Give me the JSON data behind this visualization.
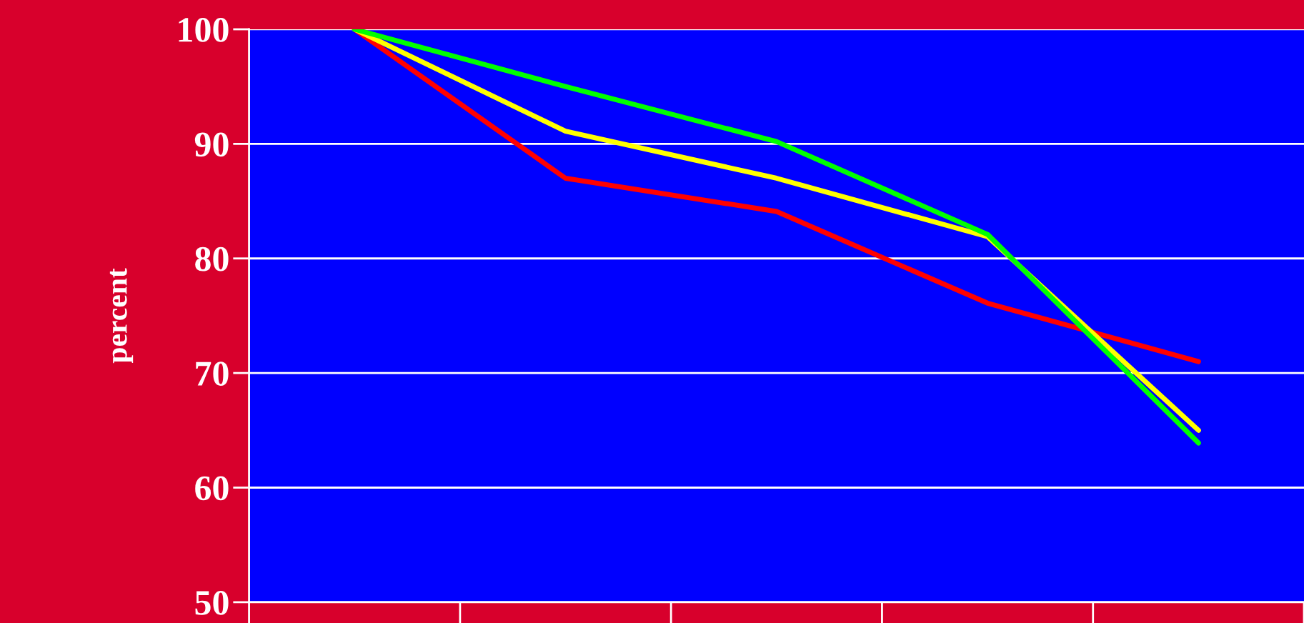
{
  "chart_data": {
    "type": "line",
    "ylabel": "percent",
    "categories": [
      null,
      null,
      null,
      null,
      null
    ],
    "ylim": [
      50,
      100
    ],
    "yticks": [
      50,
      60,
      70,
      80,
      90,
      100
    ],
    "grid": "y",
    "marker": "none",
    "line_style": "solid",
    "series": [
      {
        "color": "#ff0000",
        "values": [
          100,
          87.0,
          84.1,
          76.1,
          71.0
        ]
      },
      {
        "color": "#ffff00",
        "values": [
          100,
          91.1,
          87.0,
          81.9,
          65.0
        ]
      },
      {
        "color": "#00ff00",
        "values": [
          100,
          95.0,
          90.2,
          82.1,
          63.9
        ]
      }
    ]
  }
}
